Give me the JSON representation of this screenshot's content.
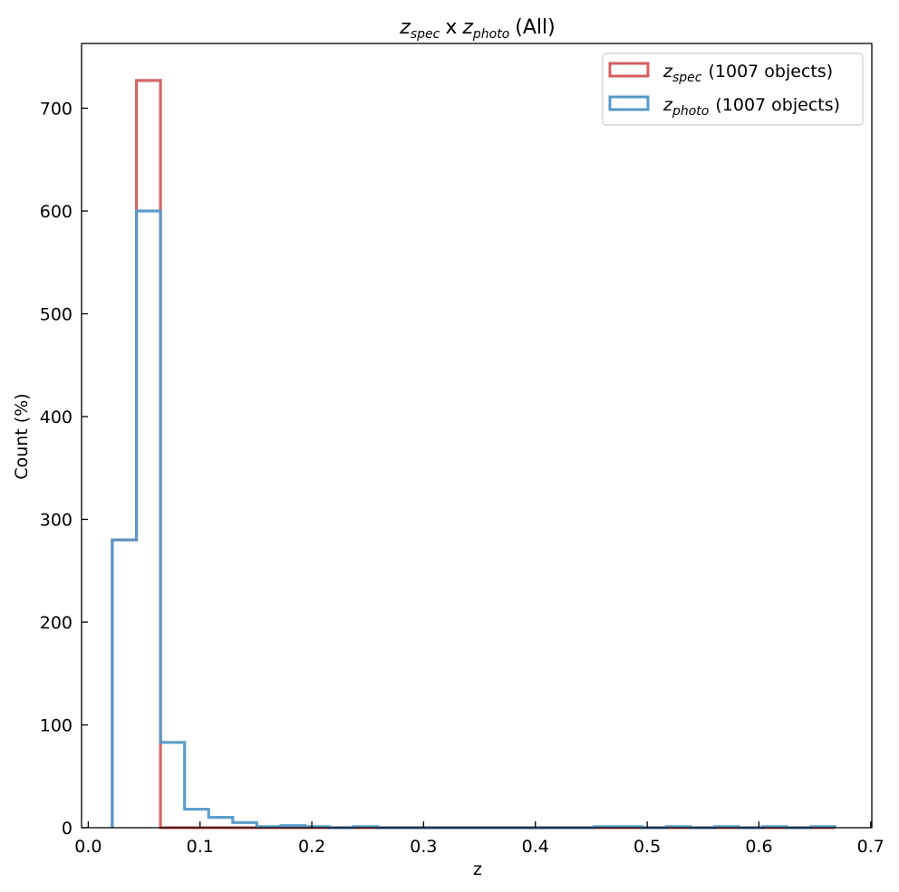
{
  "chart_data": {
    "type": "histogram-step",
    "title": {
      "spec_main": "z",
      "spec_sub": "spec",
      "sep": "x",
      "photo_main": "z",
      "photo_sub": "photo",
      "suffix": "(All)"
    },
    "xlabel": "z",
    "ylabel": "Count (%)",
    "xlim": [
      -0.006,
      0.701
    ],
    "ylim": [
      0,
      763
    ],
    "x_ticks": [
      0.0,
      0.1,
      0.2,
      0.3,
      0.4,
      0.5,
      0.6,
      0.7
    ],
    "x_tick_labels": [
      "0.0",
      "0.1",
      "0.2",
      "0.3",
      "0.4",
      "0.5",
      "0.6",
      "0.7"
    ],
    "y_ticks": [
      0,
      100,
      200,
      300,
      400,
      500,
      600,
      700
    ],
    "y_tick_labels": [
      "0",
      "100",
      "200",
      "300",
      "400",
      "500",
      "600",
      "700"
    ],
    "grid": false,
    "legend_position": "top-right",
    "bin_edges": [
      0.0215,
      0.0431,
      0.0646,
      0.0862,
      0.1077,
      0.1293,
      0.1508,
      0.1724,
      0.1939,
      0.2155,
      0.237,
      0.2586,
      0.2801,
      0.3017,
      0.3232,
      0.3448,
      0.3663,
      0.3879,
      0.4094,
      0.431,
      0.4525,
      0.4741,
      0.4956,
      0.5172,
      0.5387,
      0.5603,
      0.5818,
      0.6034,
      0.6249,
      0.6465,
      0.668
    ],
    "series": [
      {
        "name_main": "z",
        "name_sub": "spec",
        "name_suffix": "(1007 objects)",
        "color": "#d45f5f",
        "values": [
          280,
          727,
          0,
          0,
          0,
          0,
          0,
          0,
          0,
          0,
          0,
          0,
          0,
          0,
          0,
          0,
          0,
          0,
          0,
          0,
          0,
          0,
          0,
          0,
          0,
          0,
          0,
          0,
          0,
          0
        ]
      },
      {
        "name_main": "z",
        "name_sub": "photo",
        "name_suffix": "(1007 objects)",
        "color": "#5599c8",
        "values": [
          280,
          600,
          83,
          18,
          10,
          5,
          1,
          2,
          1,
          0,
          1,
          0,
          0,
          0,
          0,
          0,
          0,
          0,
          0,
          0,
          1,
          1,
          0,
          1,
          0,
          1,
          0,
          1,
          0,
          1
        ]
      }
    ]
  }
}
